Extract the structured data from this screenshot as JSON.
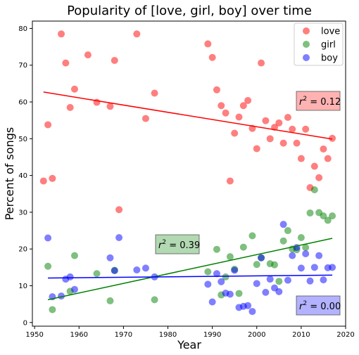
{
  "chart_data": {
    "type": "scatter",
    "title": "Popularity of [love, girl, boy] over time",
    "xlabel": "Year",
    "ylabel": "Percent of songs",
    "xlim": [
      1949.5,
      2020
    ],
    "ylim": [
      -1,
      82
    ],
    "xticks": [
      1950,
      1960,
      1970,
      1980,
      1990,
      2000,
      2010,
      2020
    ],
    "yticks": [
      0,
      10,
      20,
      30,
      40,
      50,
      60,
      70,
      80
    ],
    "grid": false,
    "legend_position": "top-right",
    "series": [
      {
        "name": "love",
        "color": "#ff0000",
        "points": [
          [
            1952,
            38.5
          ],
          [
            1953,
            53.8
          ],
          [
            1954,
            39.2
          ],
          [
            1956,
            78.5
          ],
          [
            1957,
            70.6
          ],
          [
            1958,
            58.5
          ],
          [
            1959,
            63.5
          ],
          [
            1962,
            72.8
          ],
          [
            1964,
            59.9
          ],
          [
            1967,
            58.8
          ],
          [
            1968,
            71.3
          ],
          [
            1969,
            30.7
          ],
          [
            1973,
            78.5
          ],
          [
            1975,
            55.5
          ],
          [
            1977,
            62.4
          ],
          [
            1989,
            75.8
          ],
          [
            1990,
            72.1
          ],
          [
            1991,
            63.3
          ],
          [
            1992,
            59.0
          ],
          [
            1993,
            57.0
          ],
          [
            1994,
            38.5
          ],
          [
            1995,
            51.5
          ],
          [
            1996,
            55.9
          ],
          [
            1997,
            59.0
          ],
          [
            1998,
            60.4
          ],
          [
            1999,
            52.8
          ],
          [
            2000,
            47.3
          ],
          [
            2001,
            70.6
          ],
          [
            2002,
            54.9
          ],
          [
            2003,
            50.0
          ],
          [
            2004,
            53.1
          ],
          [
            2005,
            54.3
          ],
          [
            2006,
            48.8
          ],
          [
            2007,
            55.8
          ],
          [
            2008,
            52.6
          ],
          [
            2009,
            48.8
          ],
          [
            2010,
            44.6
          ],
          [
            2011,
            52.6
          ],
          [
            2012,
            36.7
          ],
          [
            2013,
            42.5
          ],
          [
            2014,
            39.4
          ],
          [
            2015,
            47.2
          ],
          [
            2016,
            44.6
          ],
          [
            2017,
            50.1
          ]
        ],
        "trend": [
          [
            1952,
            62.7
          ],
          [
            2017,
            49.9
          ]
        ],
        "r2": "0.12"
      },
      {
        "name": "girl",
        "color": "#008000",
        "points": [
          [
            1953,
            15.3
          ],
          [
            1954,
            3.5
          ],
          [
            1958,
            8.5
          ],
          [
            1959,
            18.2
          ],
          [
            1964,
            13.3
          ],
          [
            1967,
            5.9
          ],
          [
            1968,
            14.2
          ],
          [
            1977,
            6.2
          ],
          [
            1989,
            13.8
          ],
          [
            1991,
            19.9
          ],
          [
            1992,
            7.5
          ],
          [
            1993,
            12.4
          ],
          [
            1994,
            17.9
          ],
          [
            1995,
            14.5
          ],
          [
            1996,
            7.9
          ],
          [
            1997,
            20.5
          ],
          [
            1999,
            23.6
          ],
          [
            2000,
            15.8
          ],
          [
            2001,
            17.6
          ],
          [
            2003,
            16.0
          ],
          [
            2004,
            15.7
          ],
          [
            2005,
            11.2
          ],
          [
            2006,
            22.2
          ],
          [
            2007,
            25.0
          ],
          [
            2008,
            20.0
          ],
          [
            2009,
            19.8
          ],
          [
            2010,
            23.1
          ],
          [
            2011,
            20.4
          ],
          [
            2012,
            29.8
          ],
          [
            2013,
            36.1
          ],
          [
            2014,
            29.9
          ],
          [
            2015,
            29.0
          ],
          [
            2016,
            27.8
          ],
          [
            2017,
            29.0
          ]
        ],
        "trend": [
          [
            1953,
            6.2
          ],
          [
            2017,
            22.9
          ]
        ],
        "r2": "0.39"
      },
      {
        "name": "boy",
        "color": "#0000ff",
        "points": [
          [
            1953,
            23.0
          ],
          [
            1954,
            7.0
          ],
          [
            1956,
            7.2
          ],
          [
            1957,
            11.8
          ],
          [
            1958,
            12.4
          ],
          [
            1959,
            9.0
          ],
          [
            1967,
            17.6
          ],
          [
            1968,
            14.1
          ],
          [
            1969,
            23.1
          ],
          [
            1973,
            14.3
          ],
          [
            1975,
            14.8
          ],
          [
            1977,
            12.4
          ],
          [
            1989,
            10.4
          ],
          [
            1990,
            5.6
          ],
          [
            1991,
            13.3
          ],
          [
            1992,
            11.1
          ],
          [
            1993,
            8.0
          ],
          [
            1994,
            7.7
          ],
          [
            1995,
            14.2
          ],
          [
            1996,
            4.1
          ],
          [
            1997,
            4.4
          ],
          [
            1998,
            4.6
          ],
          [
            1999,
            3.0
          ],
          [
            2000,
            10.6
          ],
          [
            2001,
            17.6
          ],
          [
            2002,
            8.2
          ],
          [
            2003,
            11.8
          ],
          [
            2004,
            9.4
          ],
          [
            2005,
            8.4
          ],
          [
            2006,
            26.7
          ],
          [
            2007,
            11.5
          ],
          [
            2008,
            18.2
          ],
          [
            2009,
            20.4
          ],
          [
            2010,
            14.8
          ],
          [
            2011,
            18.7
          ],
          [
            2012,
            11.3
          ],
          [
            2013,
            15.0
          ],
          [
            2014,
            18.2
          ],
          [
            2015,
            11.6
          ],
          [
            2016,
            14.9
          ],
          [
            2017,
            15.0
          ]
        ],
        "trend": [
          [
            1953,
            12.1
          ],
          [
            2017,
            12.9
          ]
        ],
        "r2": "0.00"
      }
    ]
  }
}
